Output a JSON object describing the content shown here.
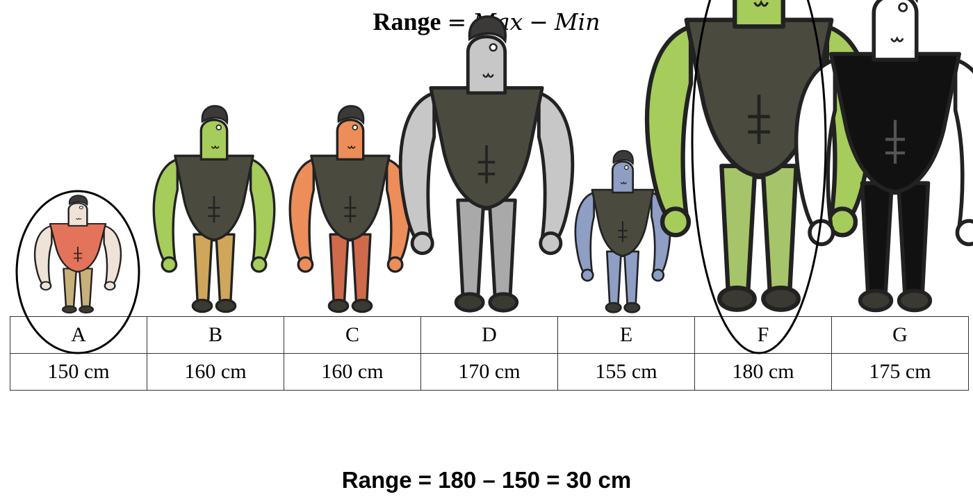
{
  "formula": {
    "word": "Range",
    "equals": "=",
    "max": "Max",
    "minus": "−",
    "min": "Min"
  },
  "people": [
    {
      "label": "A",
      "height": "150 cm",
      "cm": 150,
      "skin": "#efe2d6",
      "shirt": "#e3735a",
      "pants": "#c8b07a",
      "circled": true
    },
    {
      "label": "B",
      "height": "160 cm",
      "cm": 160,
      "skin": "#a6cc5b",
      "shirt": "#4a4a3f",
      "pants": "#cfa65a",
      "circled": false
    },
    {
      "label": "C",
      "height": "160 cm",
      "cm": 160,
      "skin": "#ec8d5a",
      "shirt": "#4a4a3f",
      "pants": "#cf6a4a",
      "circled": false
    },
    {
      "label": "D",
      "height": "170 cm",
      "cm": 170,
      "skin": "#c7c7c7",
      "shirt": "#4a4a3f",
      "pants": "#a9a9a9",
      "circled": false
    },
    {
      "label": "E",
      "height": "155 cm",
      "cm": 155,
      "skin": "#8e9ec4",
      "shirt": "#4a4a3f",
      "pants": "#8e9ec4",
      "circled": false
    },
    {
      "label": "F",
      "height": "180 cm",
      "cm": 180,
      "skin": "#a6cc5b",
      "shirt": "#4a4a3f",
      "pants": "#a6c46a",
      "circled": true
    },
    {
      "label": "G",
      "height": "175 cm",
      "cm": 175,
      "skin": "#ffffff",
      "shirt": "#111111",
      "pants": "#111111",
      "circled": false
    }
  ],
  "result": "Range = 180 – 150 = 30 cm"
}
